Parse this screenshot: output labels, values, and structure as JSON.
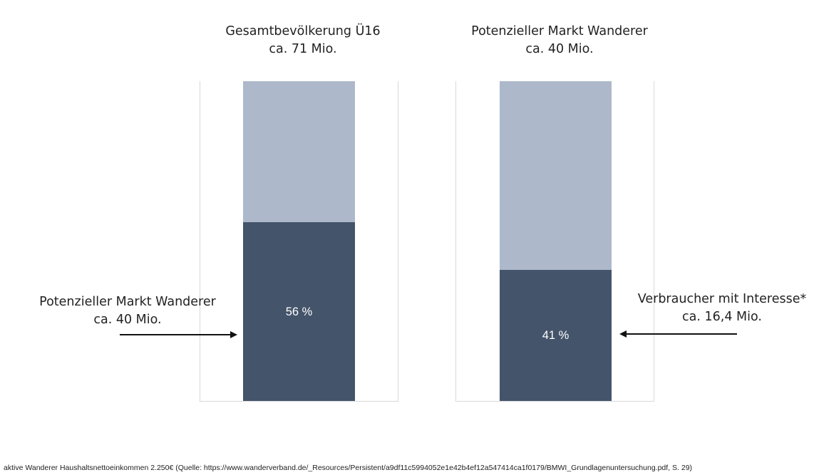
{
  "chart_data": [
    {
      "type": "bar",
      "stacked": true,
      "title": [
        "Gesamtbevölkerung Ü16",
        "ca. 71 Mio."
      ],
      "categories": [
        "Gesamtbevölkerung Ü16"
      ],
      "series": [
        {
          "values": [
            56
          ],
          "color": "#44546a",
          "label": "56 %"
        },
        {
          "values": [
            44
          ],
          "color": "#adb9ca"
        }
      ],
      "ylim": [
        0,
        100
      ],
      "callout": {
        "lines": [
          "Potenzieller Markt Wanderer",
          "ca. 40 Mio."
        ],
        "side": "left"
      }
    },
    {
      "type": "bar",
      "stacked": true,
      "title": [
        "Potenzieller Markt Wanderer",
        "ca. 40 Mio."
      ],
      "categories": [
        "Potenzieller Markt Wanderer"
      ],
      "series": [
        {
          "values": [
            41
          ],
          "color": "#44546a",
          "label": "41 %"
        },
        {
          "values": [
            59
          ],
          "color": "#adb9ca"
        }
      ],
      "ylim": [
        0,
        100
      ],
      "callout": {
        "lines": [
          "Verbraucher mit Interesse*",
          "ca. 16,4 Mio."
        ],
        "side": "right"
      }
    }
  ],
  "footnote": "aktive Wanderer Haushaltsnettoeinkommen 2.250€  (Quelle: https://www.wanderverband.de/_Resources/Persistent/a9df11c5994052e1e42b4ef12a547414ca1f0179/BMWI_Grundlagenuntersuchung.pdf, S. 29)"
}
